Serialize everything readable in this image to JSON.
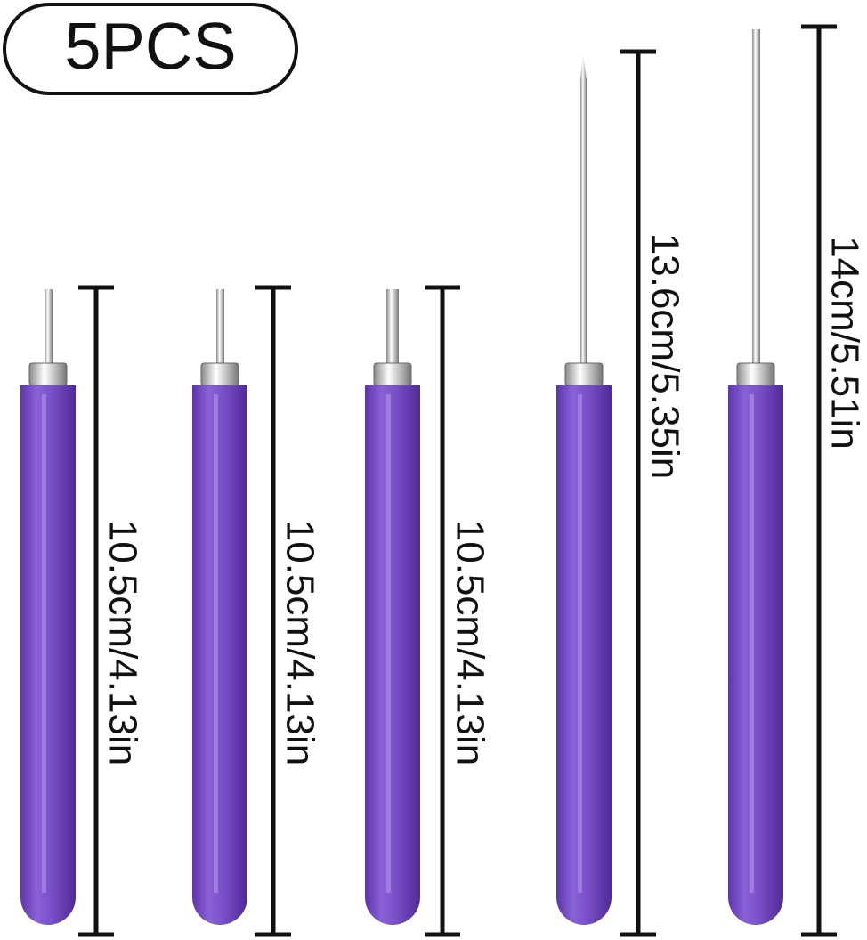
{
  "badge": "5PCS",
  "tools": [
    {
      "label": "10.5cm/4.13in"
    },
    {
      "label": "10.5cm/4.13in"
    },
    {
      "label": "10.5cm/4.13in"
    },
    {
      "label": "13.6cm/5.35in"
    },
    {
      "label": "14cm/5.51in"
    }
  ]
}
